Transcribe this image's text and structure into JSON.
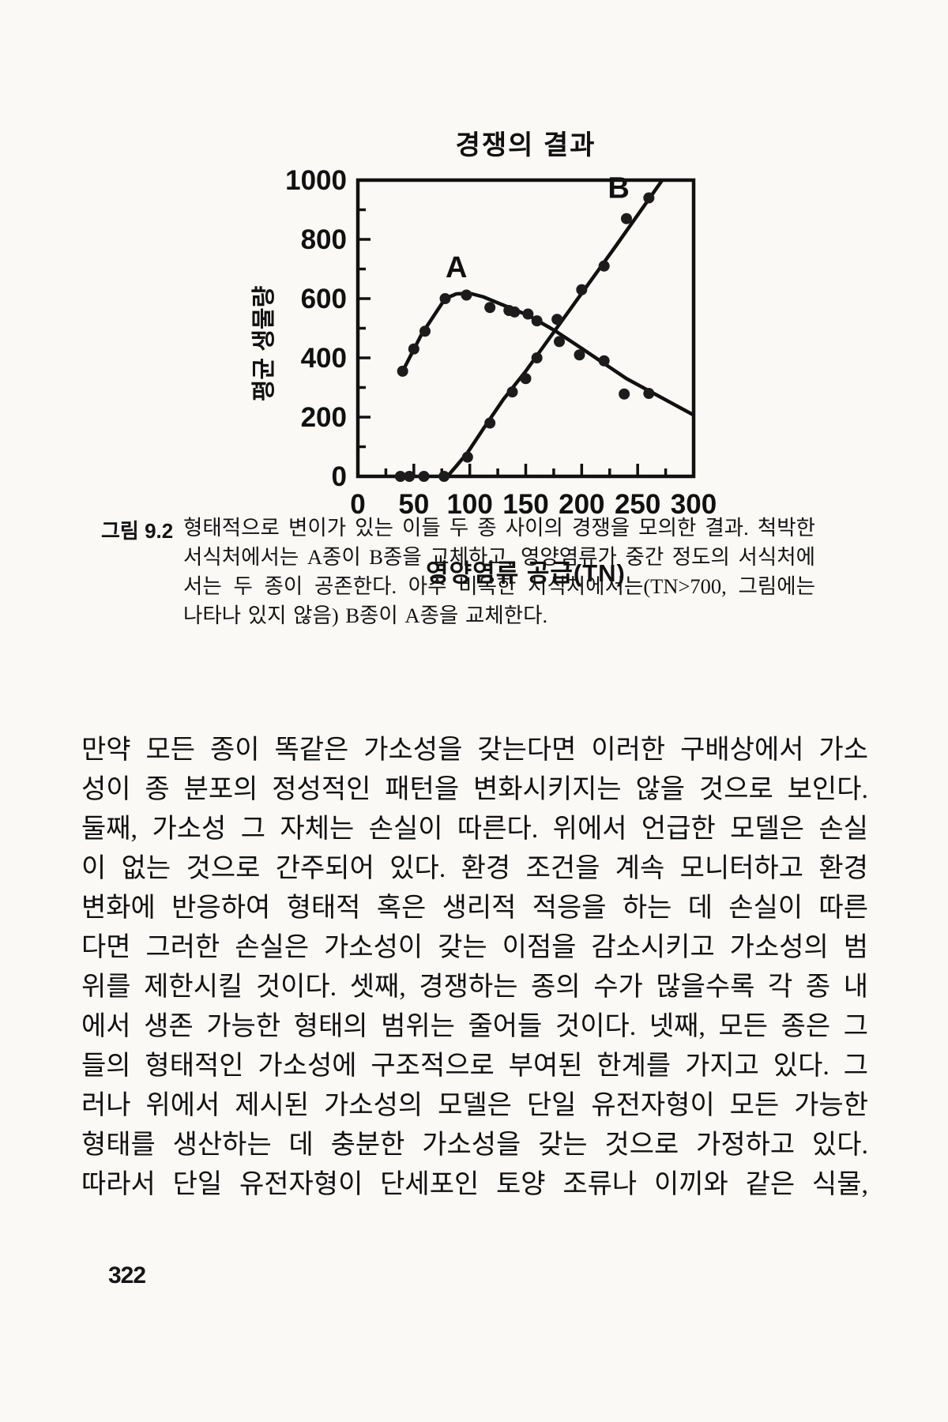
{
  "page": {
    "number": "322"
  },
  "figure": {
    "title": "경쟁의 결과",
    "x_axis": {
      "label": "영양염류 공급(TN)"
    },
    "y_axis": {
      "label": "평균 생물량"
    }
  },
  "chart_data": {
    "type": "scatter",
    "title": "경쟁의 결과",
    "xlabel": "영양염류 공급(TN)",
    "ylabel": "평균 생물량",
    "xlim": [
      0,
      300
    ],
    "ylim": [
      0,
      1000
    ],
    "x_ticks": [
      0,
      50,
      100,
      150,
      200,
      250,
      300
    ],
    "y_ticks": [
      0,
      200,
      400,
      600,
      800,
      1000
    ],
    "x_minor_step": 25,
    "y_minor_step": 100,
    "grid": false,
    "ink_color": "#111111",
    "series": [
      {
        "name": "A",
        "points": [
          [
            40,
            355
          ],
          [
            50,
            430
          ],
          [
            60,
            490
          ],
          [
            78,
            600
          ],
          [
            97,
            612
          ],
          [
            118,
            570
          ],
          [
            135,
            560
          ],
          [
            140,
            555
          ],
          [
            152,
            548
          ],
          [
            160,
            525
          ],
          [
            180,
            455
          ],
          [
            198,
            410
          ],
          [
            220,
            390
          ],
          [
            238,
            278
          ],
          [
            260,
            280
          ]
        ],
        "trend": [
          [
            40,
            355
          ],
          [
            57,
            480
          ],
          [
            78,
            600
          ],
          [
            88,
            616
          ],
          [
            100,
            618
          ],
          [
            112,
            606
          ],
          [
            130,
            578
          ],
          [
            152,
            544
          ],
          [
            176,
            492
          ],
          [
            200,
            432
          ],
          [
            240,
            330
          ],
          [
            300,
            207
          ]
        ]
      },
      {
        "name": "B",
        "points": [
          [
            38,
            0
          ],
          [
            46,
            0
          ],
          [
            59,
            0
          ],
          [
            77,
            0
          ],
          [
            98,
            65
          ],
          [
            118,
            180
          ],
          [
            138,
            285
          ],
          [
            150,
            330
          ],
          [
            160,
            400
          ],
          [
            178,
            530
          ],
          [
            200,
            630
          ],
          [
            220,
            710
          ],
          [
            240,
            870
          ],
          [
            260,
            940
          ]
        ],
        "trend": [
          [
            80,
            0
          ],
          [
            88,
            35
          ],
          [
            98,
            80
          ],
          [
            112,
            160
          ],
          [
            130,
            260
          ],
          [
            150,
            355
          ],
          [
            176,
            492
          ],
          [
            200,
            618
          ],
          [
            230,
            775
          ],
          [
            272,
            1000
          ]
        ]
      }
    ],
    "annotations": [
      {
        "text": "A",
        "x": 88,
        "y": 672
      },
      {
        "text": "B",
        "x": 233,
        "y": 940
      }
    ]
  },
  "caption": {
    "label": "그림 9.2",
    "lines": [
      "형태적으로 변이가 있는 이들 두 종 사이의 경쟁을 모의한 결과. 척박한",
      "서식처에서는 A종이 B종을 교체하고, 영양염류가 중간 정도의 서식처에",
      "서는 두 종이 공존한다. 아주 비옥한 서식처에서는(TN>700, 그림에는",
      "나타나 있지 않음) B종이 A종을 교체한다."
    ]
  },
  "body": {
    "lines": [
      "만약 모든 종이 똑같은 가소성을 갖는다면 이러한 구배상에서 가소",
      "성이 종 분포의 정성적인 패턴을 변화시키지는 않을 것으로 보인다.",
      "둘째, 가소성 그 자체는 손실이 따른다. 위에서 언급한 모델은 손실",
      "이 없는 것으로 간주되어 있다. 환경 조건을 계속 모니터하고 환경",
      "변화에 반응하여 형태적 혹은 생리적 적응을 하는 데 손실이 따른",
      "다면 그러한 손실은 가소성이 갖는 이점을 감소시키고 가소성의 범",
      "위를 제한시킬 것이다. 셋째, 경쟁하는 종의 수가 많을수록 각 종 내",
      "에서 생존 가능한 형태의 범위는 줄어들 것이다. 넷째, 모든 종은 그",
      "들의 형태적인 가소성에 구조적으로 부여된 한계를 가지고 있다. 그",
      "러나 위에서 제시된 가소성의 모델은 단일 유전자형이 모든 가능한",
      "형태를 생산하는 데 충분한 가소성을 갖는 것으로 가정하고 있다.",
      "따라서 단일 유전자형이 단세포인 토양 조류나 이끼와 같은 식물,"
    ]
  }
}
